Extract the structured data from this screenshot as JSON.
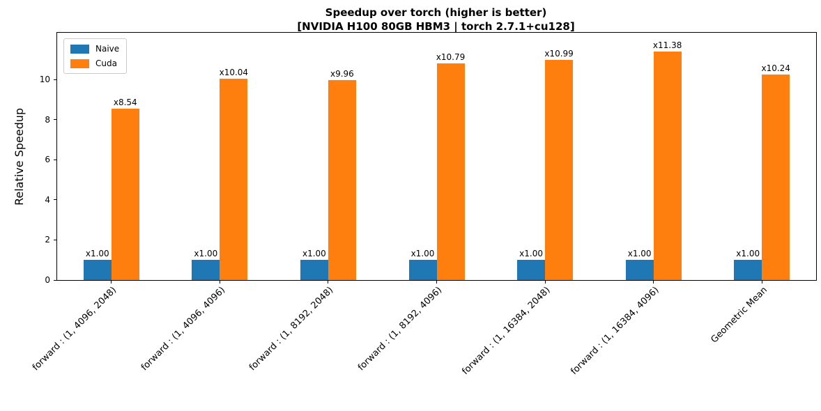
{
  "chart_data": {
    "type": "bar",
    "title": "Speedup over torch (higher is better)",
    "subtitle": "[NVIDIA H100 80GB HBM3 | torch 2.7.1+cu128]",
    "ylabel": "Relative Speedup",
    "xlabel": "",
    "categories": [
      "forward : (1, 4096, 2048)",
      "forward : (1, 4096, 4096)",
      "forward : (1, 8192, 2048)",
      "forward : (1, 8192, 4096)",
      "forward : (1, 16384, 2048)",
      "forward : (1, 16384, 4096)",
      "Geometric Mean"
    ],
    "series": [
      {
        "name": "Naive",
        "color": "#1f77b4",
        "values": [
          1.0,
          1.0,
          1.0,
          1.0,
          1.0,
          1.0,
          1.0
        ],
        "labels": [
          "x1.00",
          "x1.00",
          "x1.00",
          "x1.00",
          "x1.00",
          "x1.00",
          "x1.00"
        ]
      },
      {
        "name": "Cuda",
        "color": "#ff7f0e",
        "values": [
          8.54,
          10.04,
          9.96,
          10.79,
          10.99,
          11.38,
          10.24
        ],
        "labels": [
          "x8.54",
          "x10.04",
          "x9.96",
          "x10.79",
          "x10.99",
          "x11.38",
          "x10.24"
        ]
      }
    ],
    "yticks": [
      0,
      2,
      4,
      6,
      8,
      10
    ],
    "ylim": [
      0,
      12.33
    ],
    "grid": false,
    "legend_position": "upper left",
    "xtick_rotation_deg": 45
  }
}
